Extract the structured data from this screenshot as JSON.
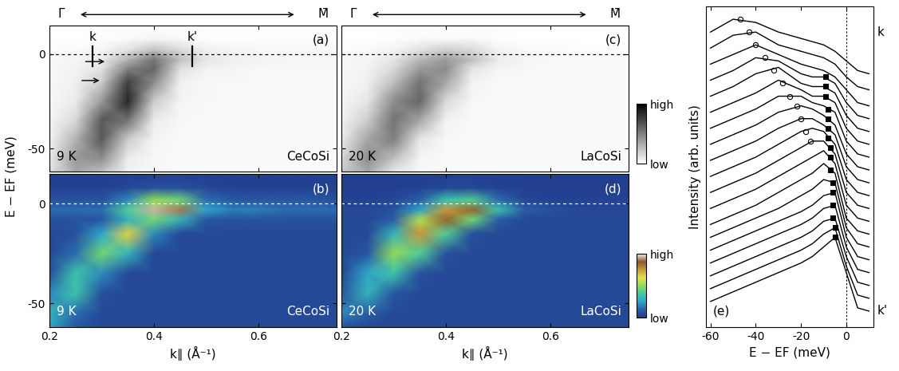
{
  "chart_data": [
    {
      "type": "heatmap",
      "label": "(a)",
      "temperature": "9 K",
      "sample": "CeCoSi",
      "ylabel": "E − EF (meV)",
      "direction": {
        "from": "Γ̄",
        "to": "M̄"
      },
      "k_points": [
        {
          "label": "k",
          "value": 0.283
        },
        {
          "label": "k'",
          "value": 0.473
        }
      ],
      "arrows": [
        {
          "x": [
            0.265,
            0.31
          ],
          "y": -4
        },
        {
          "x": [
            0.258,
            0.3
          ],
          "y": -14
        }
      ],
      "fermi_level": 0,
      "tick_labels": "y",
      "xlim": [
        0.2,
        0.75
      ],
      "ylim": [
        -62,
        15
      ],
      "xticks": [
        0.2,
        0.4,
        0.6
      ],
      "yticks": [
        0,
        -50
      ],
      "colors": [
        "#ffffff",
        "#000000"
      ],
      "zlim": [
        0,
        100
      ],
      "x": [
        0.2,
        0.25,
        0.3,
        0.35,
        0.4,
        0.45,
        0.5,
        0.55,
        0.6,
        0.65,
        0.7,
        0.75
      ],
      "y": [
        -62,
        -55,
        -45,
        -35,
        -25,
        -15,
        -8,
        -3,
        2,
        8,
        15
      ],
      "z": [
        [
          10,
          35,
          25,
          5,
          3,
          2,
          2,
          2,
          2,
          2,
          2,
          2
        ],
        [
          8,
          40,
          45,
          8,
          3,
          2,
          2,
          2,
          2,
          2,
          2,
          2
        ],
        [
          5,
          30,
          65,
          20,
          4,
          2,
          2,
          2,
          2,
          2,
          2,
          2
        ],
        [
          4,
          15,
          65,
          55,
          8,
          3,
          2,
          2,
          2,
          2,
          2,
          2
        ],
        [
          3,
          8,
          40,
          85,
          20,
          4,
          3,
          2,
          2,
          2,
          2,
          2
        ],
        [
          3,
          6,
          20,
          75,
          45,
          6,
          3,
          3,
          2,
          2,
          2,
          2
        ],
        [
          3,
          5,
          12,
          50,
          60,
          12,
          5,
          4,
          3,
          3,
          3,
          3
        ],
        [
          3,
          4,
          8,
          30,
          55,
          25,
          10,
          6,
          5,
          4,
          4,
          4
        ],
        [
          1,
          2,
          4,
          12,
          25,
          15,
          6,
          4,
          3,
          3,
          3,
          3
        ],
        [
          0,
          0,
          1,
          2,
          4,
          3,
          1,
          1,
          1,
          1,
          1,
          1
        ],
        [
          0,
          0,
          0,
          0,
          0,
          0,
          0,
          0,
          0,
          0,
          0,
          0
        ]
      ]
    },
    {
      "type": "heatmap",
      "label": "(b)",
      "temperature": "9 K",
      "sample": "CeCoSi",
      "xlabel": "k∥ (Å⁻¹)",
      "fermi_level": 0,
      "xlim": [
        0.2,
        0.75
      ],
      "ylim": [
        -62,
        15
      ],
      "xticks": [
        0.2,
        0.4,
        0.6
      ],
      "yticks": [
        0,
        -50
      ],
      "colors": [
        "#223a8c",
        "#2a5fa8",
        "#2fa6c8",
        "#41c9a4",
        "#8fdc5a",
        "#e6e04a",
        "#c99a3c",
        "#8b5a2b",
        "#f3eee8"
      ],
      "zlim": [
        0,
        100
      ],
      "x": [
        0.2,
        0.25,
        0.3,
        0.35,
        0.4,
        0.45,
        0.5,
        0.55,
        0.6,
        0.65,
        0.7,
        0.75
      ],
      "y": [
        -62,
        -55,
        -45,
        -35,
        -25,
        -15,
        -8,
        -3,
        2,
        8,
        15
      ],
      "z": [
        [
          25,
          10,
          5,
          5,
          5,
          5,
          5,
          5,
          5,
          5,
          5,
          5
        ],
        [
          30,
          15,
          5,
          5,
          5,
          5,
          5,
          5,
          5,
          5,
          5,
          5
        ],
        [
          20,
          35,
          8,
          5,
          5,
          5,
          5,
          5,
          5,
          5,
          5,
          5
        ],
        [
          8,
          35,
          20,
          5,
          5,
          5,
          5,
          5,
          5,
          5,
          5,
          5
        ],
        [
          5,
          15,
          45,
          30,
          5,
          5,
          5,
          5,
          5,
          5,
          5,
          5
        ],
        [
          5,
          8,
          25,
          65,
          20,
          5,
          5,
          5,
          5,
          5,
          5,
          5
        ],
        [
          8,
          8,
          10,
          30,
          45,
          30,
          10,
          8,
          8,
          8,
          8,
          8
        ],
        [
          15,
          15,
          15,
          40,
          95,
          90,
          25,
          18,
          18,
          15,
          15,
          15
        ],
        [
          8,
          8,
          8,
          20,
          50,
          45,
          15,
          10,
          10,
          10,
          10,
          8
        ],
        [
          3,
          3,
          3,
          5,
          8,
          8,
          5,
          3,
          3,
          3,
          3,
          3
        ],
        [
          2,
          2,
          2,
          2,
          2,
          2,
          2,
          2,
          2,
          2,
          2,
          2
        ]
      ]
    },
    {
      "type": "heatmap",
      "label": "(c)",
      "temperature": "20 K",
      "sample": "LaCoSi",
      "direction": {
        "from": "Γ̄",
        "to": "M̄"
      },
      "fermi_level": 0,
      "tick_labels": false,
      "xlim": [
        0.2,
        0.75
      ],
      "ylim": [
        -62,
        15
      ],
      "xticks": [
        0.2,
        0.4,
        0.6
      ],
      "yticks": [
        0,
        -50
      ],
      "colors": [
        "#ffffff",
        "#000000"
      ],
      "zlim": [
        0,
        100
      ],
      "colorbar": {
        "ticks": [
          {
            "value": 0,
            "label": "low"
          },
          {
            "value": 100,
            "label": "high"
          }
        ]
      },
      "x": [
        0.2,
        0.25,
        0.3,
        0.35,
        0.4,
        0.45,
        0.5,
        0.55,
        0.6,
        0.65,
        0.7,
        0.75
      ],
      "y": [
        -62,
        -55,
        -45,
        -35,
        -25,
        -15,
        -8,
        -3,
        2,
        8,
        15
      ],
      "z": [
        [
          20,
          35,
          10,
          3,
          2,
          2,
          2,
          2,
          2,
          2,
          2,
          2
        ],
        [
          15,
          45,
          25,
          4,
          2,
          2,
          2,
          2,
          2,
          2,
          2,
          2
        ],
        [
          8,
          35,
          50,
          10,
          3,
          2,
          2,
          2,
          2,
          2,
          2,
          2
        ],
        [
          5,
          20,
          55,
          35,
          5,
          2,
          2,
          2,
          2,
          2,
          2,
          2
        ],
        [
          4,
          10,
          45,
          60,
          15,
          3,
          2,
          2,
          2,
          2,
          2,
          2
        ],
        [
          3,
          6,
          25,
          55,
          35,
          5,
          2,
          2,
          2,
          2,
          2,
          2
        ],
        [
          3,
          5,
          15,
          40,
          45,
          10,
          4,
          3,
          2,
          2,
          2,
          2
        ],
        [
          3,
          4,
          10,
          28,
          40,
          25,
          8,
          4,
          3,
          2,
          2,
          2
        ],
        [
          1,
          2,
          5,
          12,
          20,
          15,
          5,
          2,
          2,
          1,
          1,
          1
        ],
        [
          0,
          0,
          1,
          2,
          3,
          3,
          1,
          0,
          0,
          0,
          0,
          0
        ],
        [
          0,
          0,
          0,
          0,
          0,
          0,
          0,
          0,
          0,
          0,
          0,
          0
        ]
      ]
    },
    {
      "type": "heatmap",
      "label": "(d)",
      "temperature": "20 K",
      "sample": "LaCoSi",
      "xlabel": "k∥ (Å⁻¹)",
      "fermi_level": 0,
      "tick_labels": "x",
      "xlim": [
        0.2,
        0.75
      ],
      "ylim": [
        -62,
        15
      ],
      "xticks": [
        0.2,
        0.4,
        0.6
      ],
      "yticks": [
        0,
        -50
      ],
      "colors": [
        "#223a8c",
        "#2a5fa8",
        "#2fa6c8",
        "#41c9a4",
        "#8fdc5a",
        "#e6e04a",
        "#c99a3c",
        "#8b5a2b",
        "#f3eee8"
      ],
      "zlim": [
        0,
        100
      ],
      "colorbar": {
        "ticks": [
          {
            "value": 0,
            "label": "low"
          },
          {
            "value": 100,
            "label": "high"
          }
        ]
      },
      "x": [
        0.2,
        0.25,
        0.3,
        0.35,
        0.4,
        0.45,
        0.5,
        0.55,
        0.6,
        0.65,
        0.7,
        0.75
      ],
      "y": [
        -62,
        -55,
        -45,
        -35,
        -25,
        -15,
        -8,
        -3,
        2,
        8,
        15
      ],
      "z": [
        [
          8,
          5,
          5,
          5,
          5,
          5,
          5,
          5,
          5,
          5,
          5,
          5
        ],
        [
          20,
          12,
          5,
          5,
          5,
          5,
          5,
          5,
          5,
          5,
          5,
          5
        ],
        [
          10,
          30,
          10,
          5,
          5,
          5,
          5,
          5,
          5,
          5,
          5,
          5
        ],
        [
          5,
          25,
          35,
          8,
          5,
          5,
          5,
          5,
          5,
          5,
          5,
          5
        ],
        [
          5,
          10,
          50,
          40,
          8,
          5,
          5,
          5,
          5,
          5,
          5,
          5
        ],
        [
          5,
          5,
          30,
          75,
          40,
          8,
          5,
          5,
          5,
          5,
          5,
          5
        ],
        [
          5,
          5,
          12,
          55,
          85,
          45,
          12,
          5,
          5,
          5,
          5,
          5
        ],
        [
          5,
          5,
          8,
          25,
          75,
          85,
          35,
          12,
          8,
          5,
          5,
          5
        ],
        [
          3,
          3,
          5,
          12,
          35,
          40,
          15,
          5,
          3,
          3,
          3,
          3
        ],
        [
          2,
          2,
          2,
          3,
          5,
          5,
          3,
          2,
          2,
          2,
          2,
          2
        ],
        [
          2,
          2,
          2,
          2,
          2,
          2,
          2,
          2,
          2,
          2,
          2,
          2
        ]
      ]
    },
    {
      "type": "line",
      "label": "(e)",
      "xlabel": "E − EF (meV)",
      "ylabel": "Intensity (arb. units)",
      "end_labels": {
        "top": "k",
        "bottom": "k'"
      },
      "fermi_level": 0,
      "tick_labels": "x",
      "color": "#000000",
      "xlim": [
        -62,
        12
      ],
      "ylim": [
        0,
        100
      ],
      "xticks": [
        -60,
        -40,
        -20,
        0
      ],
      "yticks": [],
      "x": [
        -60,
        -50,
        -40,
        -30,
        -20,
        -15,
        -10,
        -5,
        0,
        5,
        10
      ],
      "series": [
        {
          "type": "line",
          "values": [
            92,
            96,
            95,
            92,
            90,
            89,
            88,
            86,
            83,
            80,
            79
          ]
        },
        {
          "type": "line",
          "values": [
            87,
            91,
            92,
            88,
            86,
            85,
            84,
            82,
            78,
            75,
            74
          ]
        },
        {
          "type": "line",
          "values": [
            82,
            85,
            88,
            85,
            82,
            81,
            80,
            78,
            74,
            70,
            69
          ]
        },
        {
          "type": "line",
          "values": [
            77,
            80,
            84,
            83,
            79,
            78,
            78,
            76,
            70,
            66,
            65
          ]
        },
        {
          "type": "line",
          "values": [
            72,
            75,
            79,
            81,
            76,
            75,
            75,
            73,
            66,
            62,
            61
          ]
        },
        {
          "type": "line",
          "values": [
            67,
            70,
            73,
            77,
            74,
            72,
            72,
            70,
            62,
            58,
            57
          ]
        },
        {
          "type": "line",
          "values": [
            62,
            65,
            68,
            72,
            72,
            70,
            69,
            67,
            58,
            54,
            53
          ]
        },
        {
          "type": "line",
          "values": [
            57,
            60,
            63,
            67,
            69,
            68,
            66,
            63,
            54,
            50,
            49
          ]
        },
        {
          "type": "line",
          "values": [
            52,
            55,
            58,
            62,
            65,
            65,
            63,
            60,
            50,
            46,
            45
          ]
        },
        {
          "type": "line",
          "values": [
            47,
            50,
            53,
            57,
            61,
            62,
            61,
            57,
            46,
            42,
            41
          ]
        },
        {
          "type": "line",
          "values": [
            42,
            45,
            48,
            52,
            56,
            58,
            58,
            54,
            42,
            38,
            37
          ]
        },
        {
          "type": "line",
          "values": [
            37,
            40,
            43,
            47,
            51,
            53,
            55,
            51,
            38,
            34,
            33
          ]
        },
        {
          "type": "line",
          "values": [
            32,
            35,
            38,
            42,
            46,
            48,
            51,
            48,
            34,
            30,
            29
          ]
        },
        {
          "type": "line",
          "values": [
            28,
            31,
            34,
            37,
            41,
            43,
            46,
            45,
            31,
            26,
            25
          ]
        },
        {
          "type": "line",
          "values": [
            24,
            27,
            30,
            33,
            36,
            38,
            41,
            42,
            28,
            22,
            21
          ]
        },
        {
          "type": "line",
          "values": [
            20,
            23,
            26,
            29,
            32,
            34,
            37,
            38,
            25,
            18,
            17
          ]
        },
        {
          "type": "line",
          "values": [
            16,
            19,
            22,
            25,
            28,
            30,
            33,
            34,
            22,
            14,
            13
          ]
        },
        {
          "type": "line",
          "values": [
            12,
            15,
            18,
            21,
            24,
            26,
            29,
            31,
            19,
            10,
            9
          ]
        },
        {
          "type": "line",
          "values": [
            8,
            11,
            14,
            17,
            20,
            22,
            25,
            28,
            17,
            6,
            5
          ]
        },
        {
          "type": "scatter",
          "marker": "open_circle",
          "x": [
            -47,
            -43,
            -40,
            -36,
            -32,
            -28,
            -25,
            -22,
            -20,
            -18,
            -16
          ],
          "values": [
            96,
            92,
            88,
            84,
            80,
            76,
            72,
            69,
            65,
            61,
            58
          ]
        },
        {
          "type": "scatter",
          "marker": "square",
          "x": [
            -9,
            -9,
            -9,
            -8,
            -8,
            -8,
            -8,
            -7,
            -7,
            -7,
            -6,
            -6,
            -6,
            -6,
            -5,
            -5
          ],
          "values": [
            78,
            75,
            72,
            68,
            65,
            62,
            59,
            56,
            53,
            49,
            45,
            42,
            38,
            34,
            31,
            28
          ]
        }
      ]
    }
  ]
}
